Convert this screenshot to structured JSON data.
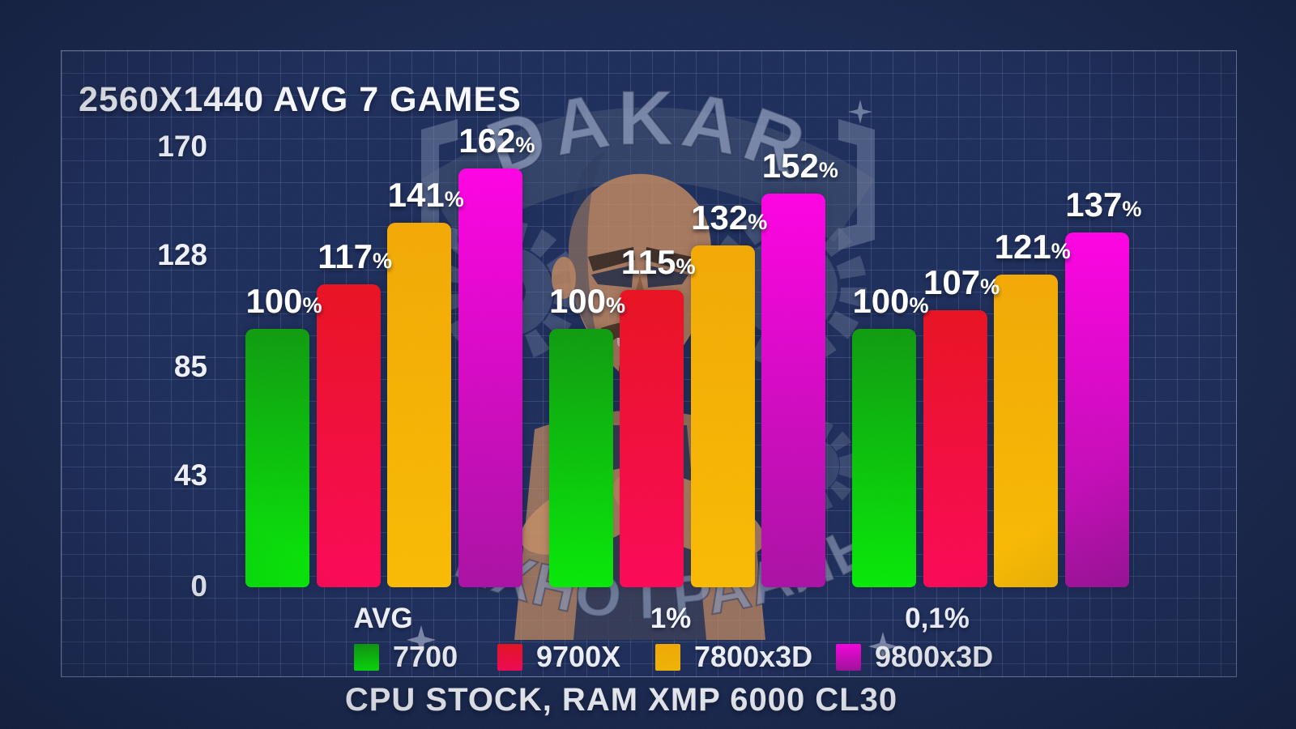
{
  "title": "2560X1440 AVG 7 GAMES",
  "caption": "CPU STOCK, RAM XMP 6000 CL30",
  "watermark": {
    "arc_text": "DAKAR",
    "bottom_arc_text": "ТЕХНО ГРААЛЬ"
  },
  "chart_data": {
    "type": "bar",
    "title": "2560X1440 AVG 7 GAMES",
    "subtitle": "CPU STOCK, RAM XMP 6000 CL30",
    "categories": [
      "AVG",
      "1%",
      "0,1%"
    ],
    "series": [
      {
        "name": "7700",
        "values": [
          100,
          100,
          100
        ],
        "color_top": "#0d9a0d",
        "color_bottom": "#05e805"
      },
      {
        "name": "9700X",
        "values": [
          117,
          115,
          107
        ],
        "color_top": "#e8101f",
        "color_bottom": "#fb0655"
      },
      {
        "name": "7800x3D",
        "values": [
          141,
          132,
          121
        ],
        "color_top": "#f2a802",
        "color_bottom": "#f9ba00"
      },
      {
        "name": "9800x3D",
        "values": [
          162,
          152,
          137
        ],
        "color_top": "#fe00e2",
        "color_bottom": "#a90fa2"
      }
    ],
    "value_suffix": "%",
    "y_axis": {
      "ticks": [
        170,
        128,
        85,
        43,
        0
      ],
      "min": 0,
      "max": 170
    },
    "grid": true,
    "legend_position": "bottom"
  }
}
